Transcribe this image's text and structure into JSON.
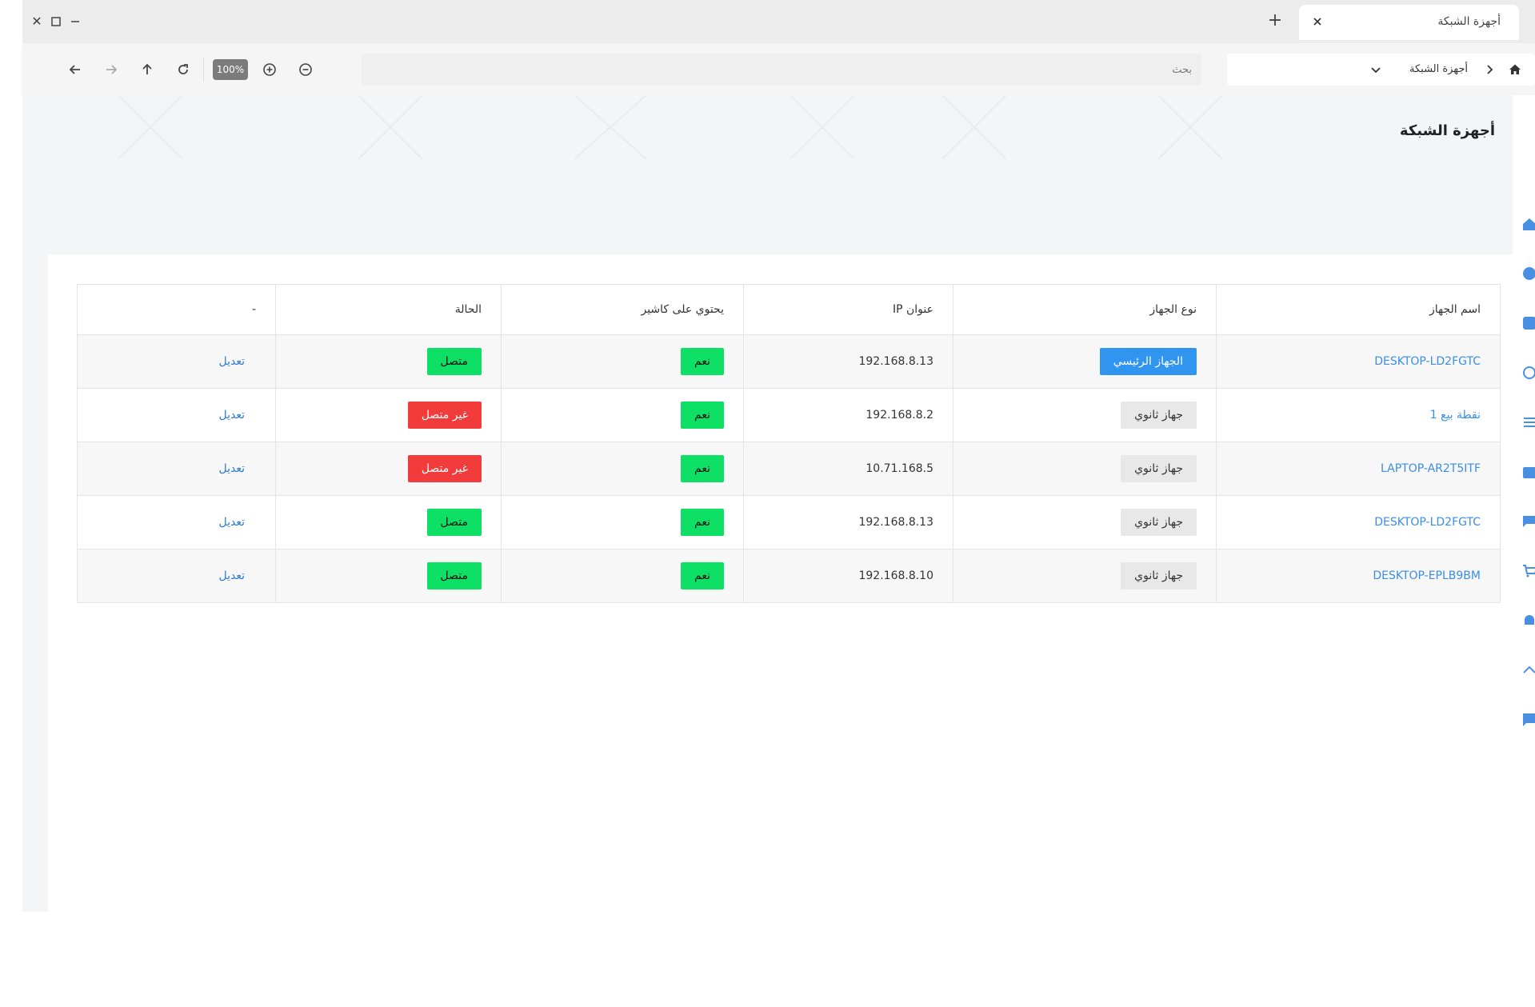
{
  "window": {
    "tab_title": "أجهزة الشبكة",
    "close_symbol": "✕",
    "maximize_symbol": "☐",
    "minimize_symbol": "—",
    "new_tab_symbol": "+"
  },
  "toolbar": {
    "zoom": "100%",
    "search_placeholder": "بحث",
    "breadcrumb_label": "أجهزة الشبكة"
  },
  "page": {
    "title": "أجهزة الشبكة"
  },
  "table": {
    "headers": [
      "اسم الجهاز",
      "نوع الجهاز",
      "عنوان IP",
      "يحتوي على كاشير",
      "الحالة",
      "-"
    ],
    "rows": [
      {
        "name": "DESKTOP-LD2FGTC",
        "type": "الجهاز الرئيسي",
        "type_kind": "primary",
        "ip": "192.168.8.13",
        "cashier": "نعم",
        "status": "متصل",
        "status_kind": "online",
        "action": "تعديل"
      },
      {
        "name": "نقطة بيع 1",
        "type": "جهاز ثانوي",
        "type_kind": "secondary",
        "ip": "192.168.8.2",
        "cashier": "نعم",
        "status": "غير متصل",
        "status_kind": "offline",
        "action": "تعديل"
      },
      {
        "name": "LAPTOP-AR2T5ITF",
        "type": "جهاز ثانوي",
        "type_kind": "secondary",
        "ip": "10.71.168.5",
        "cashier": "نعم",
        "status": "غير متصل",
        "status_kind": "offline",
        "action": "تعديل"
      },
      {
        "name": "DESKTOP-LD2FGTC",
        "type": "جهاز ثانوي",
        "type_kind": "secondary",
        "ip": "192.168.8.13",
        "cashier": "نعم",
        "status": "متصل",
        "status_kind": "online",
        "action": "تعديل"
      },
      {
        "name": "DESKTOP-EPLB9BM",
        "type": "جهاز ثانوي",
        "type_kind": "secondary",
        "ip": "192.168.8.10",
        "cashier": "نعم",
        "status": "متصل",
        "status_kind": "online",
        "action": "تعديل"
      }
    ]
  },
  "colors": {
    "primary_badge": "#2f95ee",
    "online": "#0ee065",
    "offline": "#f23c3c",
    "link": "#3a8ee6"
  },
  "icons": {
    "side": [
      "home-icon",
      "add-circle-icon",
      "add-box-icon",
      "whatsapp-icon",
      "list-icon",
      "calendar-icon",
      "chat-icon",
      "cart-icon",
      "bell-icon",
      "chevron-up-icon",
      "feedback-icon"
    ]
  }
}
